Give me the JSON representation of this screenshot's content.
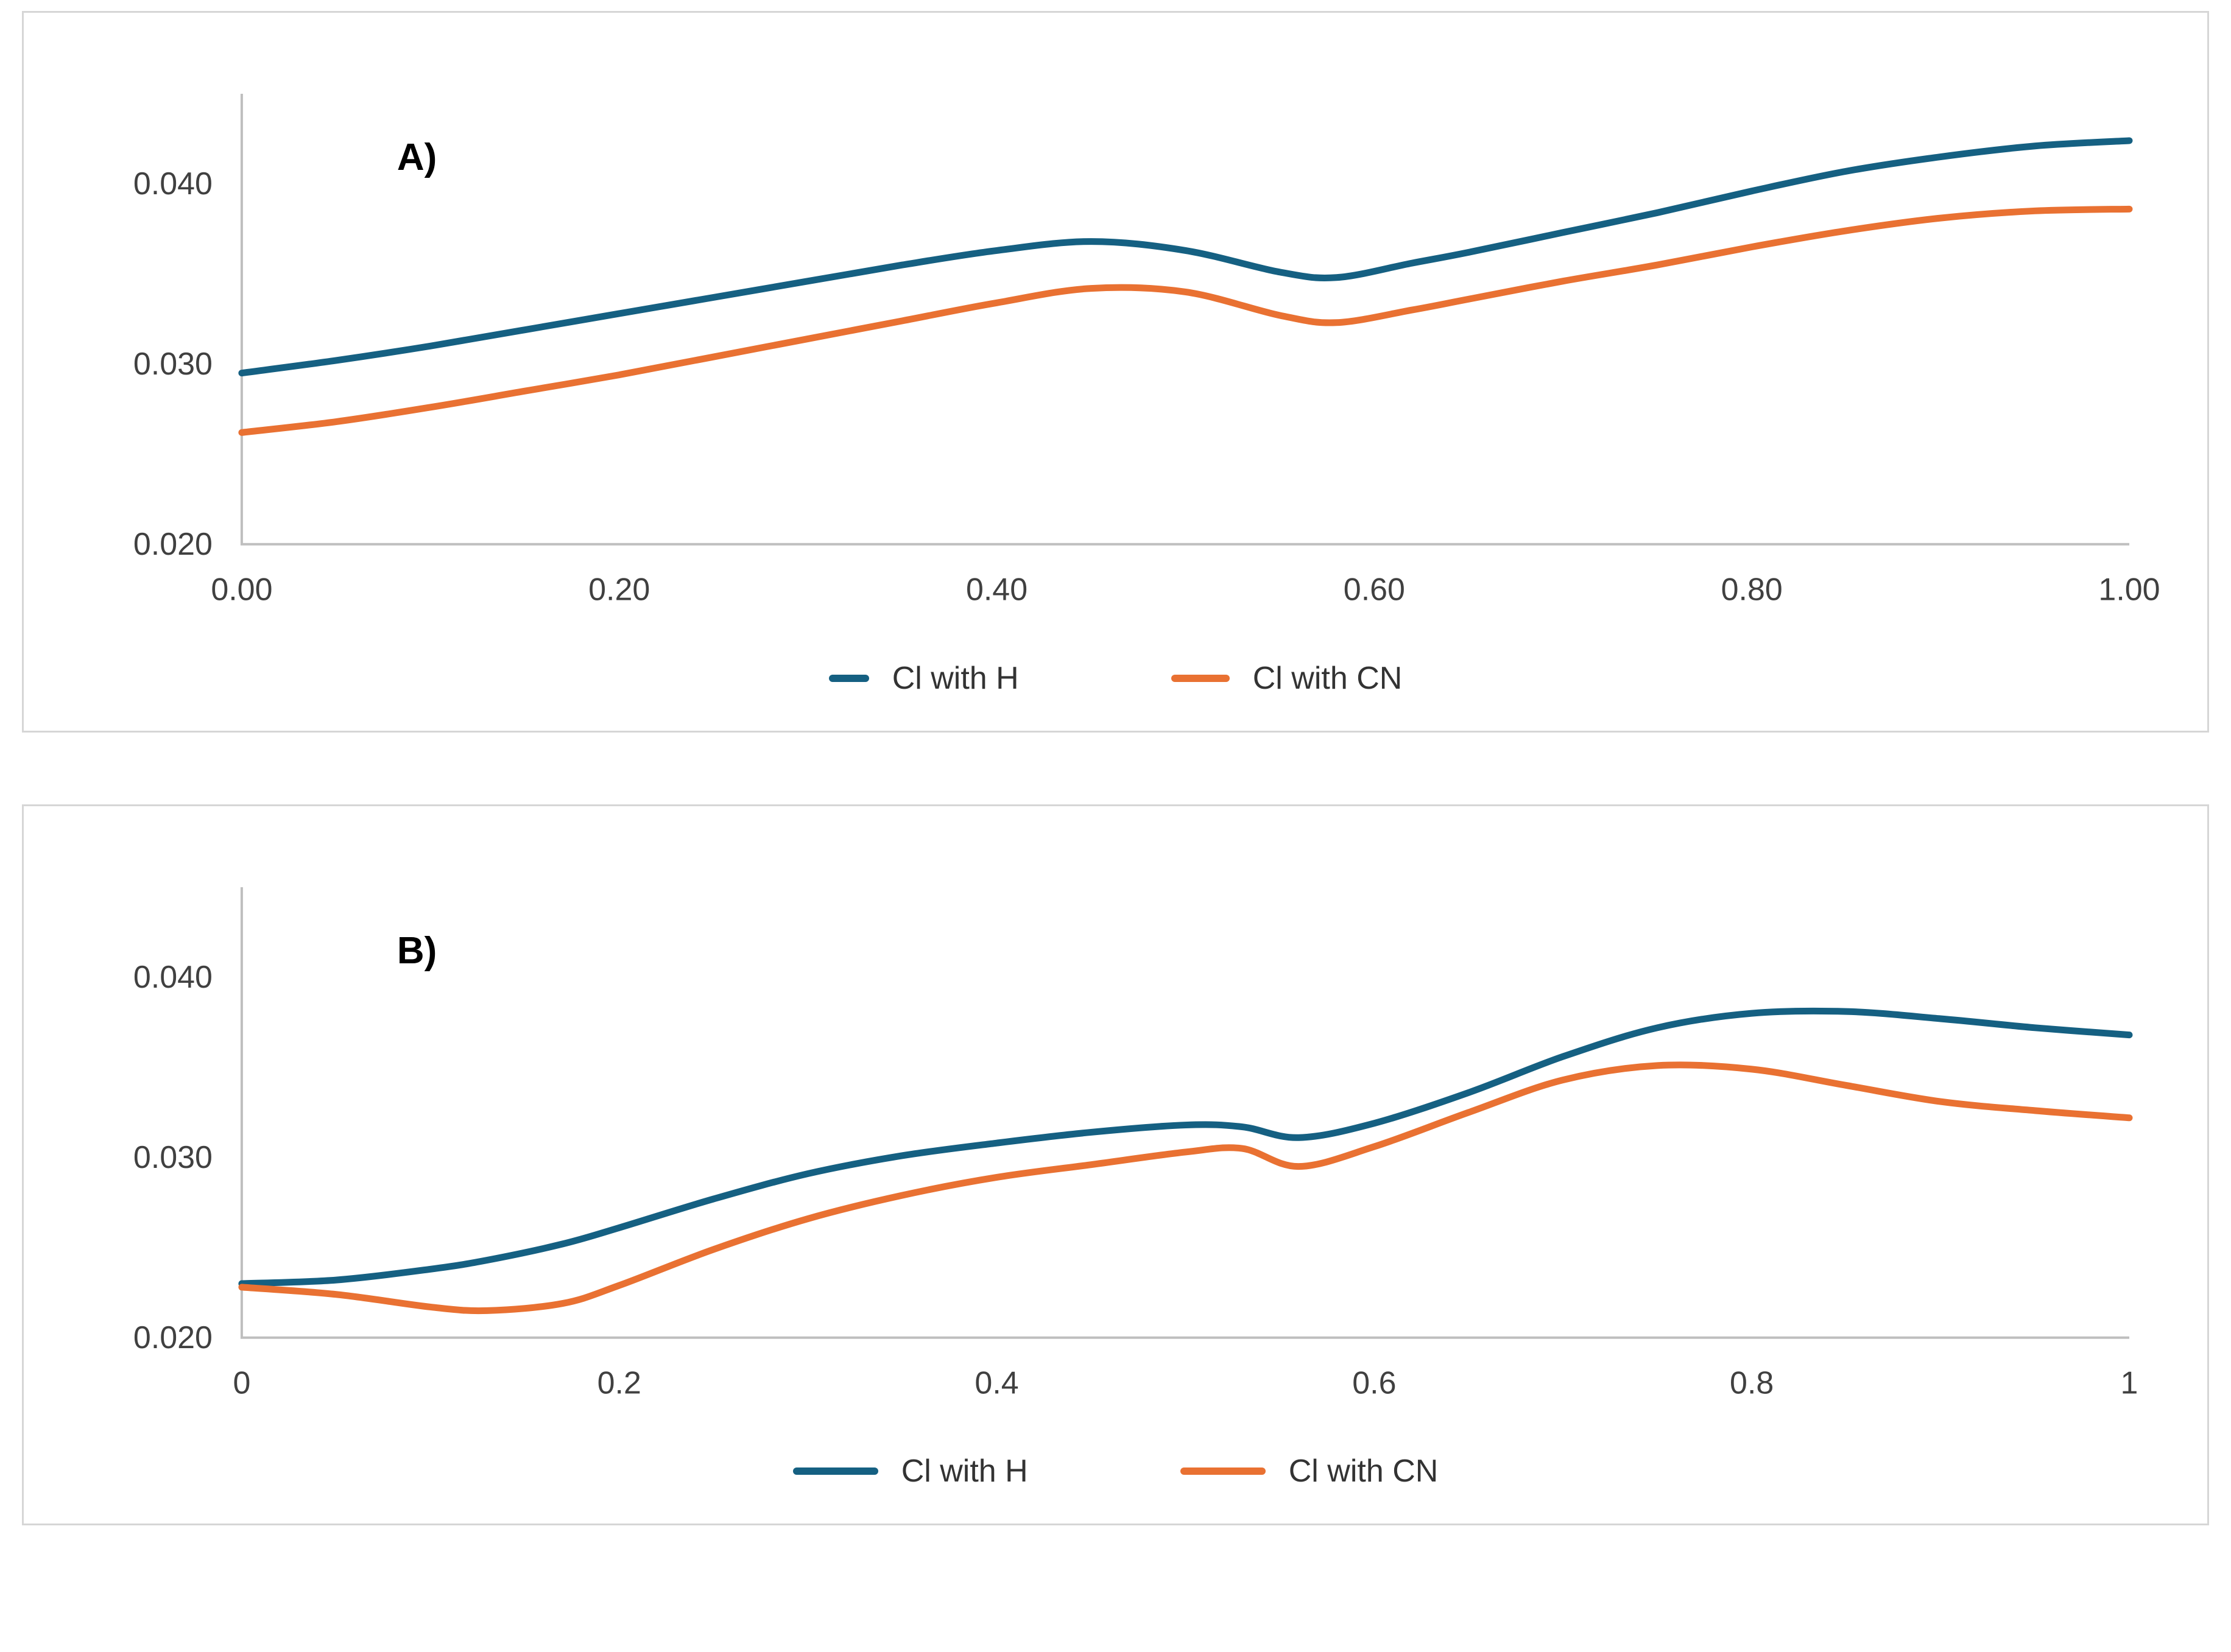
{
  "legend": {
    "series1_label": "Cl with H",
    "series2_label": "Cl with CN"
  },
  "colors": {
    "series1": "#156082",
    "series2": "#E97132",
    "axis": "#bfbfbf"
  },
  "chart_data": [
    {
      "type": "line",
      "panel_label": "A)",
      "xlim": [
        0,
        1
      ],
      "ylim": [
        0.02,
        0.045
      ],
      "grid": false,
      "legend_position": "bottom",
      "x_ticks": [
        {
          "v": 0,
          "label": "0.00"
        },
        {
          "v": 0.2,
          "label": "0.20"
        },
        {
          "v": 0.4,
          "label": "0.40"
        },
        {
          "v": 0.6,
          "label": "0.60"
        },
        {
          "v": 0.8,
          "label": "0.80"
        },
        {
          "v": 1,
          "label": "1.00"
        }
      ],
      "y_ticks": [
        {
          "v": 0.02,
          "label": "0.020"
        },
        {
          "v": 0.03,
          "label": "0.030"
        },
        {
          "v": 0.04,
          "label": "0.040"
        }
      ],
      "x": [
        0,
        0.05,
        0.1,
        0.15,
        0.2,
        0.25,
        0.3,
        0.35,
        0.4,
        0.45,
        0.5,
        0.55,
        0.58,
        0.62,
        0.65,
        0.7,
        0.75,
        0.8,
        0.85,
        0.9,
        0.95,
        1
      ],
      "series": [
        {
          "name": "Cl with H",
          "color": "#156082",
          "values": [
            0.0295,
            0.0302,
            0.031,
            0.0319,
            0.0328,
            0.0337,
            0.0346,
            0.0355,
            0.0363,
            0.0368,
            0.0363,
            0.0351,
            0.0348,
            0.0356,
            0.0362,
            0.0373,
            0.0384,
            0.0396,
            0.0407,
            0.0415,
            0.0421,
            0.0424
          ]
        },
        {
          "name": "Cl with CN",
          "color": "#E97132",
          "values": [
            0.0262,
            0.0268,
            0.0276,
            0.0285,
            0.0294,
            0.0304,
            0.0314,
            0.0324,
            0.0334,
            0.0342,
            0.034,
            0.0327,
            0.0323,
            0.033,
            0.0336,
            0.0346,
            0.0355,
            0.0365,
            0.0374,
            0.0381,
            0.0385,
            0.0386
          ]
        }
      ]
    },
    {
      "type": "line",
      "panel_label": "B)",
      "xlim": [
        0,
        1
      ],
      "ylim": [
        0.02,
        0.045
      ],
      "grid": false,
      "legend_position": "bottom",
      "x_ticks": [
        {
          "v": 0,
          "label": "0"
        },
        {
          "v": 0.2,
          "label": "0.2"
        },
        {
          "v": 0.4,
          "label": "0.4"
        },
        {
          "v": 0.6,
          "label": "0.6"
        },
        {
          "v": 0.8,
          "label": "0.8"
        },
        {
          "v": 1,
          "label": "1"
        }
      ],
      "y_ticks": [
        {
          "v": 0.02,
          "label": "0.020"
        },
        {
          "v": 0.03,
          "label": "0.030"
        },
        {
          "v": 0.04,
          "label": "0.040"
        }
      ],
      "x": [
        0,
        0.05,
        0.1,
        0.13,
        0.17,
        0.2,
        0.25,
        0.3,
        0.35,
        0.4,
        0.45,
        0.5,
        0.53,
        0.56,
        0.6,
        0.65,
        0.7,
        0.75,
        0.8,
        0.85,
        0.9,
        0.95,
        1
      ],
      "series": [
        {
          "name": "Cl with H",
          "color": "#156082",
          "values": [
            0.023,
            0.0232,
            0.0238,
            0.0243,
            0.0252,
            0.0261,
            0.0277,
            0.0291,
            0.0301,
            0.0308,
            0.0314,
            0.0318,
            0.0317,
            0.0311,
            0.0319,
            0.0336,
            0.0356,
            0.0372,
            0.038,
            0.0381,
            0.0377,
            0.0372,
            0.0368
          ]
        },
        {
          "name": "Cl with CN",
          "color": "#E97132",
          "values": [
            0.0228,
            0.0224,
            0.0217,
            0.0215,
            0.0219,
            0.0229,
            0.0249,
            0.0266,
            0.0279,
            0.0289,
            0.0296,
            0.0303,
            0.0305,
            0.0295,
            0.0306,
            0.0325,
            0.0343,
            0.0351,
            0.0349,
            0.034,
            0.0331,
            0.0326,
            0.0322
          ]
        }
      ]
    }
  ]
}
